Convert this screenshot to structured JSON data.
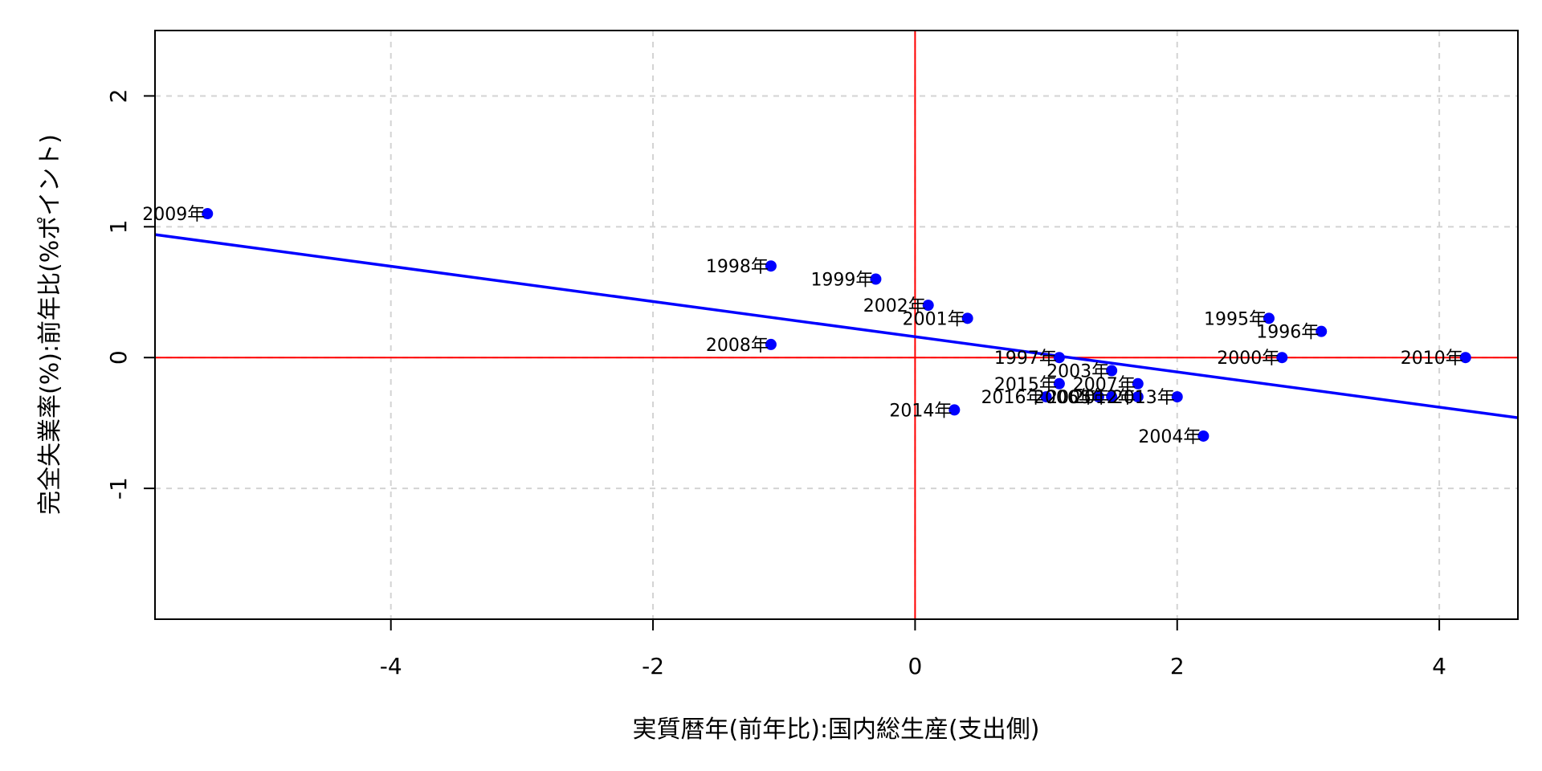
{
  "chart_data": {
    "type": "scatter",
    "xlabel": "実質暦年(前年比):国内総生産(支出側)",
    "ylabel": "完全失業率(%):前年比(%ポイント)",
    "xlim": [
      -5.8,
      4.6
    ],
    "ylim": [
      -2.0,
      2.5
    ],
    "x_ticks": [
      -4,
      -2,
      0,
      2,
      4
    ],
    "y_ticks": [
      -1,
      0,
      1,
      2
    ],
    "grid": true,
    "grid_style": "dashed",
    "point_color": "#0000ff",
    "regression_color": "#0000ff",
    "reference_line_color": "#ff0000",
    "points": [
      {
        "label": "2009年",
        "x": -5.4,
        "y": 1.1
      },
      {
        "label": "1998年",
        "x": -1.1,
        "y": 0.7
      },
      {
        "label": "1999年",
        "x": -0.3,
        "y": 0.6
      },
      {
        "label": "2002年",
        "x": 0.1,
        "y": 0.4
      },
      {
        "label": "2001年",
        "x": 0.4,
        "y": 0.3
      },
      {
        "label": "2008年",
        "x": -1.1,
        "y": 0.1
      },
      {
        "label": "1997年",
        "x": 1.1,
        "y": 0.0
      },
      {
        "label": "2003年",
        "x": 1.5,
        "y": -0.1
      },
      {
        "label": "2015年",
        "x": 1.1,
        "y": -0.2
      },
      {
        "label": "2007年",
        "x": 1.7,
        "y": -0.2
      },
      {
        "label": "2016年",
        "x": 1.0,
        "y": -0.3
      },
      {
        "label": "2006年",
        "x": 1.4,
        "y": -0.3
      },
      {
        "label": "2005年",
        "x": 1.5,
        "y": -0.3
      },
      {
        "label": "2012年",
        "x": 1.7,
        "y": -0.3
      },
      {
        "label": "2013年",
        "x": 2.0,
        "y": -0.3
      },
      {
        "label": "2014年",
        "x": 0.3,
        "y": -0.4
      },
      {
        "label": "2004年",
        "x": 2.2,
        "y": -0.6
      },
      {
        "label": "1995年",
        "x": 2.7,
        "y": 0.3
      },
      {
        "label": "1996年",
        "x": 3.1,
        "y": 0.2
      },
      {
        "label": "2000年",
        "x": 2.8,
        "y": 0.0
      },
      {
        "label": "2010年",
        "x": 4.2,
        "y": 0.0
      }
    ],
    "regression_line": {
      "x": [
        -5.8,
        4.6
      ],
      "y": [
        0.94,
        -0.46
      ]
    },
    "reference_lines": {
      "x": 0,
      "y": 0
    }
  }
}
